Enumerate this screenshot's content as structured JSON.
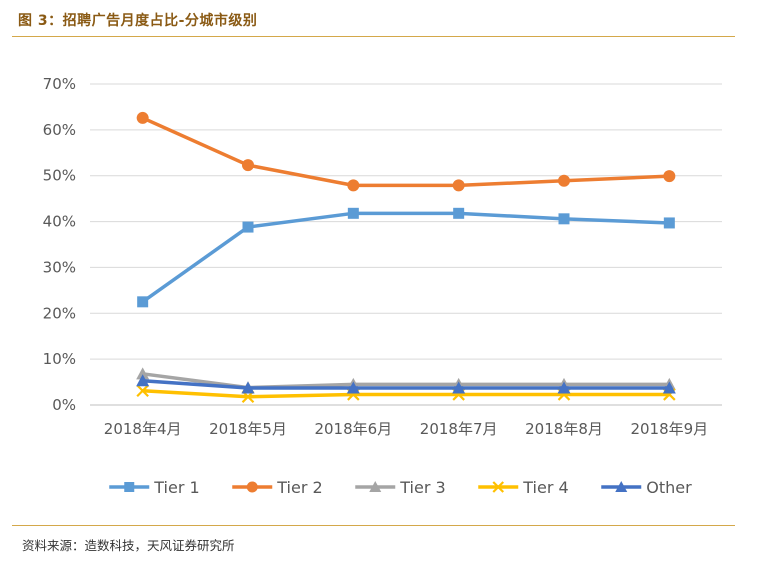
{
  "figure": {
    "title": "图 3：招聘广告月度占比-分城市级别",
    "source": "资料来源：造数科技，天风证券研究所"
  },
  "chart_data": {
    "type": "line",
    "categories": [
      "2018年4月",
      "2018年5月",
      "2018年6月",
      "2018年7月",
      "2018年8月",
      "2018年9月"
    ],
    "ylim": [
      0,
      70
    ],
    "yticks": [
      0,
      10,
      20,
      30,
      40,
      50,
      60,
      70
    ],
    "ytick_labels": [
      "0%",
      "10%",
      "20%",
      "30%",
      "40%",
      "50%",
      "60%",
      "70%"
    ],
    "grid": true,
    "legend_position": "bottom",
    "series": [
      {
        "name": "Tier 1",
        "color": "#5b9bd5",
        "marker": "square",
        "values": [
          22.5,
          38.8,
          41.8,
          41.8,
          40.6,
          39.7
        ]
      },
      {
        "name": "Tier 2",
        "color": "#ed7d31",
        "marker": "circle",
        "values": [
          62.6,
          52.3,
          47.9,
          47.9,
          48.9,
          49.9
        ]
      },
      {
        "name": "Tier 3",
        "color": "#a5a5a5",
        "marker": "triangle",
        "values": [
          6.8,
          3.8,
          4.5,
          4.5,
          4.5,
          4.5
        ]
      },
      {
        "name": "Tier 4",
        "color": "#ffc000",
        "marker": "x",
        "values": [
          3.1,
          1.8,
          2.3,
          2.3,
          2.3,
          2.3
        ]
      },
      {
        "name": "Other",
        "color": "#4472c4",
        "marker": "triangle",
        "values": [
          5.3,
          3.7,
          3.7,
          3.7,
          3.7,
          3.7
        ]
      }
    ]
  }
}
